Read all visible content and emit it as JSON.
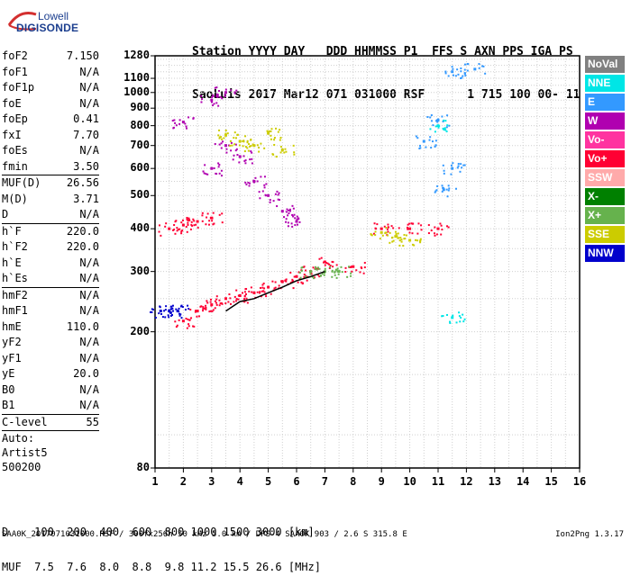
{
  "logo": {
    "line1": "Lowell",
    "line2": "DIGISONDE"
  },
  "header": {
    "row1": "Station YYYY DAY   DDD HHMMSS P1  FFS S AXN PPS IGA PS",
    "row2": "SaoLuis 2017 Mar12 071 031000 RSF      1 715 100 00- 11"
  },
  "params": {
    "group1": [
      {
        "name": "foF2",
        "value": "7.150"
      },
      {
        "name": "foF1",
        "value": "N/A"
      },
      {
        "name": "foF1p",
        "value": "N/A"
      },
      {
        "name": "foE",
        "value": "N/A"
      },
      {
        "name": "foEp",
        "value": "0.41"
      },
      {
        "name": "fxI",
        "value": "7.70"
      },
      {
        "name": "foEs",
        "value": "N/A"
      },
      {
        "name": "fmin",
        "value": "3.50"
      }
    ],
    "group2": [
      {
        "name": "MUF(D)",
        "value": "26.56"
      },
      {
        "name": "M(D)",
        "value": "3.71"
      },
      {
        "name": "D",
        "value": "N/A"
      }
    ],
    "group3": [
      {
        "name": "h`F",
        "value": "220.0"
      },
      {
        "name": "h`F2",
        "value": "220.0"
      },
      {
        "name": "h`E",
        "value": "N/A"
      },
      {
        "name": "h`Es",
        "value": "N/A"
      }
    ],
    "group4": [
      {
        "name": "hmF2",
        "value": "N/A"
      },
      {
        "name": "hmF1",
        "value": "N/A"
      },
      {
        "name": "hmE",
        "value": "110.0"
      },
      {
        "name": "yF2",
        "value": "N/A"
      },
      {
        "name": "yF1",
        "value": "N/A"
      },
      {
        "name": "yE",
        "value": "20.0"
      },
      {
        "name": "B0",
        "value": "N/A"
      },
      {
        "name": "B1",
        "value": "N/A"
      }
    ],
    "group5": [
      {
        "name": "C-level",
        "value": "55"
      }
    ],
    "auto_lines": [
      "Auto:",
      "Artist5",
      "500200"
    ]
  },
  "legend": [
    {
      "label": "NoVal",
      "color": "#808080"
    },
    {
      "label": "NNE",
      "color": "#00e6e6"
    },
    {
      "label": "E",
      "color": "#3399ff"
    },
    {
      "label": "W",
      "color": "#b000b0"
    },
    {
      "label": "Vo-",
      "color": "#ff33a0"
    },
    {
      "label": "Vo+",
      "color": "#ff0033"
    },
    {
      "label": "SSW",
      "color": "#ffaaaa"
    },
    {
      "label": "X-",
      "color": "#008000"
    },
    {
      "label": "X+",
      "color": "#66b24d"
    },
    {
      "label": "SSE",
      "color": "#cccc00"
    },
    {
      "label": "NNW",
      "color": "#0000cc"
    }
  ],
  "chart_data": {
    "type": "scatter",
    "title": "",
    "xlabel": "",
    "ylabel": "",
    "x_ticks": [
      "1",
      "2",
      "3",
      "4",
      "5",
      "6",
      "7",
      "8",
      "9",
      "10",
      "11",
      "12",
      "13",
      "14",
      "15",
      "16"
    ],
    "xlim": [
      1,
      16
    ],
    "y_ticks": [
      "80",
      "200",
      "300",
      "400",
      "500",
      "600",
      "700",
      "800",
      "900",
      "1000",
      "1100",
      "1280"
    ],
    "ylim": [
      80,
      1280
    ],
    "y_scale": "log",
    "grid": true,
    "series": [
      {
        "name": "Vo+",
        "color": "#ff0033",
        "points": [
          [
            2.0,
            215
          ],
          [
            2.5,
            230
          ],
          [
            3.0,
            240
          ],
          [
            3.5,
            250
          ],
          [
            4.0,
            255
          ],
          [
            4.5,
            260
          ],
          [
            5.0,
            270
          ],
          [
            5.5,
            280
          ],
          [
            6.0,
            290
          ],
          [
            6.5,
            300
          ],
          [
            7.0,
            320
          ],
          [
            1.5,
            400
          ],
          [
            2.0,
            410
          ],
          [
            2.5,
            420
          ],
          [
            3.0,
            430
          ],
          [
            8.0,
            310
          ],
          [
            9.0,
            400
          ],
          [
            10.0,
            400
          ],
          [
            11.0,
            400
          ]
        ]
      },
      {
        "name": "W",
        "color": "#b000b0",
        "points": [
          [
            3.0,
            600
          ],
          [
            3.5,
            700
          ],
          [
            4.0,
            650
          ],
          [
            4.5,
            550
          ],
          [
            5.0,
            500
          ],
          [
            5.5,
            450
          ],
          [
            6.0,
            420
          ],
          [
            2.0,
            820
          ],
          [
            3.0,
            950
          ],
          [
            3.5,
            1000
          ]
        ]
      },
      {
        "name": "SSE",
        "color": "#cccc00",
        "points": [
          [
            3.5,
            750
          ],
          [
            4.0,
            720
          ],
          [
            4.5,
            700
          ],
          [
            5.0,
            760
          ],
          [
            5.5,
            680
          ],
          [
            9.0,
            390
          ],
          [
            9.5,
            380
          ],
          [
            10.0,
            370
          ]
        ]
      },
      {
        "name": "X+",
        "color": "#66b24d",
        "points": [
          [
            6.5,
            300
          ],
          [
            7.0,
            300
          ],
          [
            7.5,
            300
          ]
        ]
      },
      {
        "name": "NNW",
        "color": "#0000cc",
        "points": [
          [
            1.2,
            230
          ],
          [
            1.5,
            230
          ],
          [
            1.8,
            230
          ]
        ]
      },
      {
        "name": "E",
        "color": "#3399ff",
        "points": [
          [
            11.5,
            1150
          ],
          [
            12.3,
            1170
          ],
          [
            11.0,
            830
          ],
          [
            10.5,
            720
          ],
          [
            11.2,
            520
          ],
          [
            11.5,
            600
          ]
        ]
      },
      {
        "name": "NNE",
        "color": "#00e6e6",
        "points": [
          [
            11.0,
            800
          ],
          [
            11.5,
            220
          ]
        ]
      }
    ],
    "trace": {
      "name": "h'F trace",
      "color": "#000000",
      "points": [
        [
          3.5,
          230
        ],
        [
          4.0,
          245
        ],
        [
          4.5,
          250
        ],
        [
          5.0,
          260
        ],
        [
          5.5,
          270
        ],
        [
          6.0,
          282
        ],
        [
          6.5,
          290
        ],
        [
          7.0,
          300
        ]
      ]
    }
  },
  "dmuf": {
    "row1": "D    100  200  400  600  800 1000 1500 3000 [km]",
    "row2": "MUF  7.5  7.6  8.0  8.8  9.8 11.2 15.5 26.6 [MHz]"
  },
  "footer": "SAA0K_2017071031000.RSF / 300fx256h 50 kHz 5.0 km / DPS-4 SAA0K 903 / 2.6 S 315.8 E",
  "version": "Ion2Png 1.3.17"
}
